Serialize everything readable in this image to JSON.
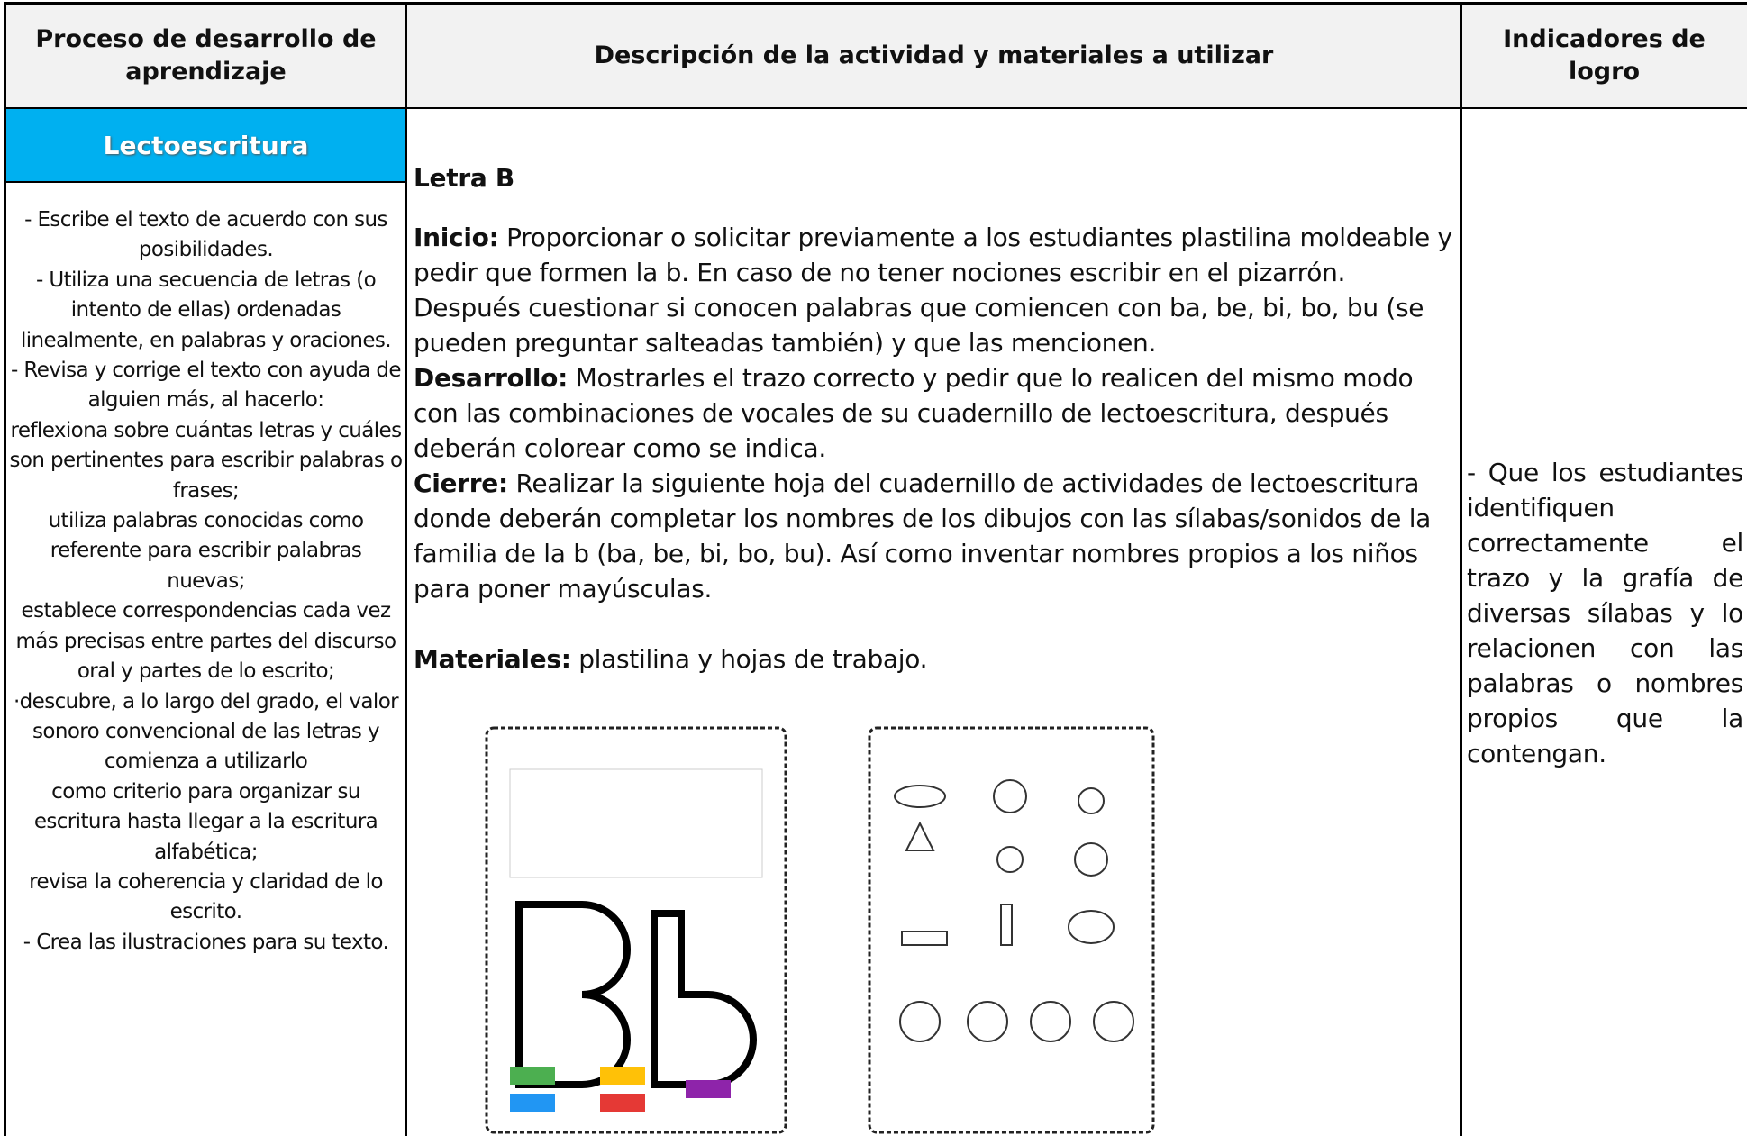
{
  "header": {
    "col1": "Proceso de desarrollo de aprendizaje",
    "col2": "Descripción de la actividad y materiales a utilizar",
    "col3": "Indicadores de logro"
  },
  "left": {
    "title": "Lectoescritura",
    "items": [
      "- Escribe el texto de acuerdo con sus posibilidades.",
      "- Utiliza una secuencia de letras (o intento de ellas) ordenadas linealmente, en palabras y oraciones.",
      "- Revisa y corrige el texto con ayuda de alguien más, al hacerlo:",
      "reflexiona sobre cuántas letras y cuáles son pertinentes para escribir palabras o frases;",
      "utiliza palabras conocidas como referente para escribir palabras nuevas;",
      "establece correspondencias cada vez más precisas entre partes del discurso oral y partes de lo escrito;",
      "·descubre, a lo largo del grado, el valor sonoro convencional de las letras y comienza a utilizarlo",
      "como criterio para organizar su escritura hasta llegar a la escritura alfabética;",
      "revisa la coherencia y claridad de lo escrito.",
      "- Crea las ilustraciones para su texto."
    ]
  },
  "middle": {
    "title": "Letra B",
    "sections": [
      {
        "label": "Inicio:",
        "text": "Proporcionar o solicitar previamente a los estudiantes plastilina moldeable y pedir que formen la b. En caso de no tener nociones escribir en el pizarrón. Después cuestionar si conocen palabras que comiencen con ba, be, bi, bo, bu (se pueden preguntar salteadas también) y que las mencionen."
      },
      {
        "label": "Desarrollo:",
        "text": "Mostrarles el trazo correcto y pedir que lo realicen del mismo modo con las combinaciones de vocales de su cuadernillo de lectoescritura, después deberán colorear como se indica."
      },
      {
        "label": "Cierre:",
        "text": "Realizar la siguiente hoja del cuadernillo de actividades de lectoescritura donde deberán completar los nombres de los dibujos con las sílabas/sonidos de la familia de la b (ba, be, bi, bo, bu). Así como inventar nombres propios a los niños para poner mayúsculas."
      }
    ],
    "materials": {
      "label": "Materiales:",
      "text": "plastilina y hojas de trabajo."
    }
  },
  "right": {
    "text": "- Que los estudiantes identifiquen correctamente el trazo y la grafía de diversas sílabas y lo relacionen con las palabras o nombres propios que la contengan."
  }
}
